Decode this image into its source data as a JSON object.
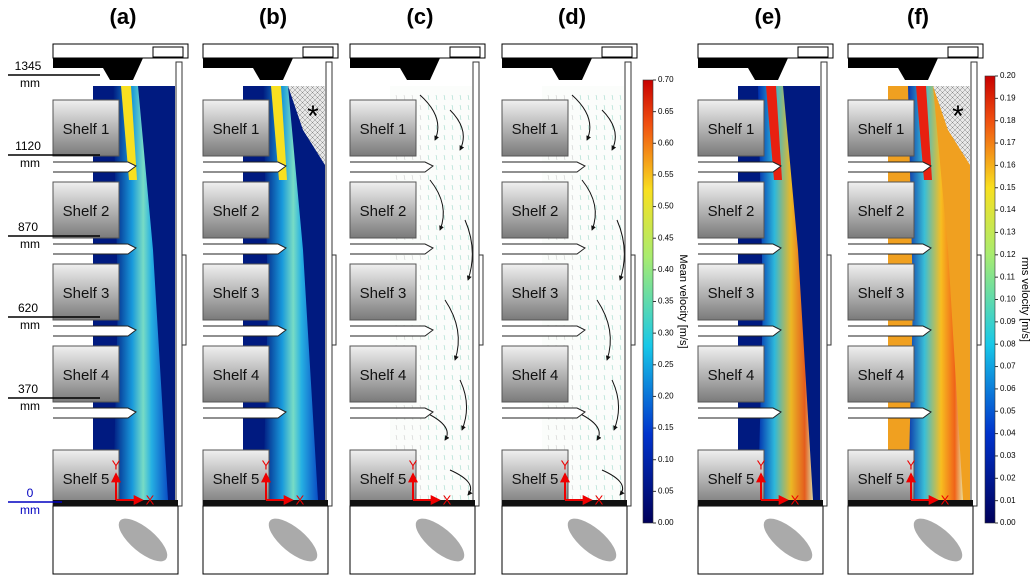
{
  "panels": [
    {
      "label": "(a)",
      "field": "mean",
      "shelves": [
        "Shelf 1",
        "Shelf 2",
        "Shelf 3",
        "Shelf 4",
        "Shelf 5"
      ],
      "axes": [
        "Y",
        "X"
      ]
    },
    {
      "label": "(b)",
      "field": "mean",
      "shelves": [
        "Shelf 1",
        "Shelf 2",
        "Shelf 3",
        "Shelf 4",
        "Shelf 5"
      ],
      "axes": [
        "Y",
        "X"
      ],
      "marker": "*"
    },
    {
      "label": "(c)",
      "field": "vectors",
      "shelves": [
        "Shelf 1",
        "Shelf 2",
        "Shelf 3",
        "Shelf 4",
        "Shelf 5"
      ],
      "axes": [
        "Y",
        "X"
      ]
    },
    {
      "label": "(d)",
      "field": "vectors",
      "shelves": [
        "Shelf 1",
        "Shelf 2",
        "Shelf 3",
        "Shelf 4",
        "Shelf 5"
      ],
      "axes": [
        "Y",
        "X"
      ]
    },
    {
      "label": "(e)",
      "field": "rms",
      "shelves": [
        "Shelf 1",
        "Shelf 2",
        "Shelf 3",
        "Shelf 4",
        "Shelf 5"
      ],
      "axes": [
        "Y",
        "X"
      ]
    },
    {
      "label": "(f)",
      "field": "rms",
      "shelves": [
        "Shelf 1",
        "Shelf 2",
        "Shelf 3",
        "Shelf 4",
        "Shelf 5"
      ],
      "axes": [
        "Y",
        "X"
      ],
      "marker": "*"
    }
  ],
  "heights": [
    {
      "value": "1345",
      "unit": "mm"
    },
    {
      "value": "1120",
      "unit": "mm"
    },
    {
      "value": "870",
      "unit": "mm"
    },
    {
      "value": "620",
      "unit": "mm"
    },
    {
      "value": "370",
      "unit": "mm"
    },
    {
      "value": "0",
      "unit": "mm"
    }
  ],
  "colorbars": [
    {
      "title": "Mean velocity [m/s]",
      "ticks": [
        "0.70",
        "0.65",
        "0.60",
        "0.55",
        "0.50",
        "0.45",
        "0.40",
        "0.35",
        "0.30",
        "0.25",
        "0.20",
        "0.15",
        "0.10",
        "0.05",
        "0.00"
      ]
    },
    {
      "title": "rms velocity [m/s]",
      "ticks": [
        "0.20",
        "0.19",
        "0.18",
        "0.17",
        "0.16",
        "0.15",
        "0.14",
        "0.13",
        "0.12",
        "0.11",
        "0.10",
        "0.09",
        "0.08",
        "0.07",
        "0.06",
        "0.05",
        "0.04",
        "0.03",
        "0.02",
        "0.01",
        "0.00"
      ]
    }
  ]
}
